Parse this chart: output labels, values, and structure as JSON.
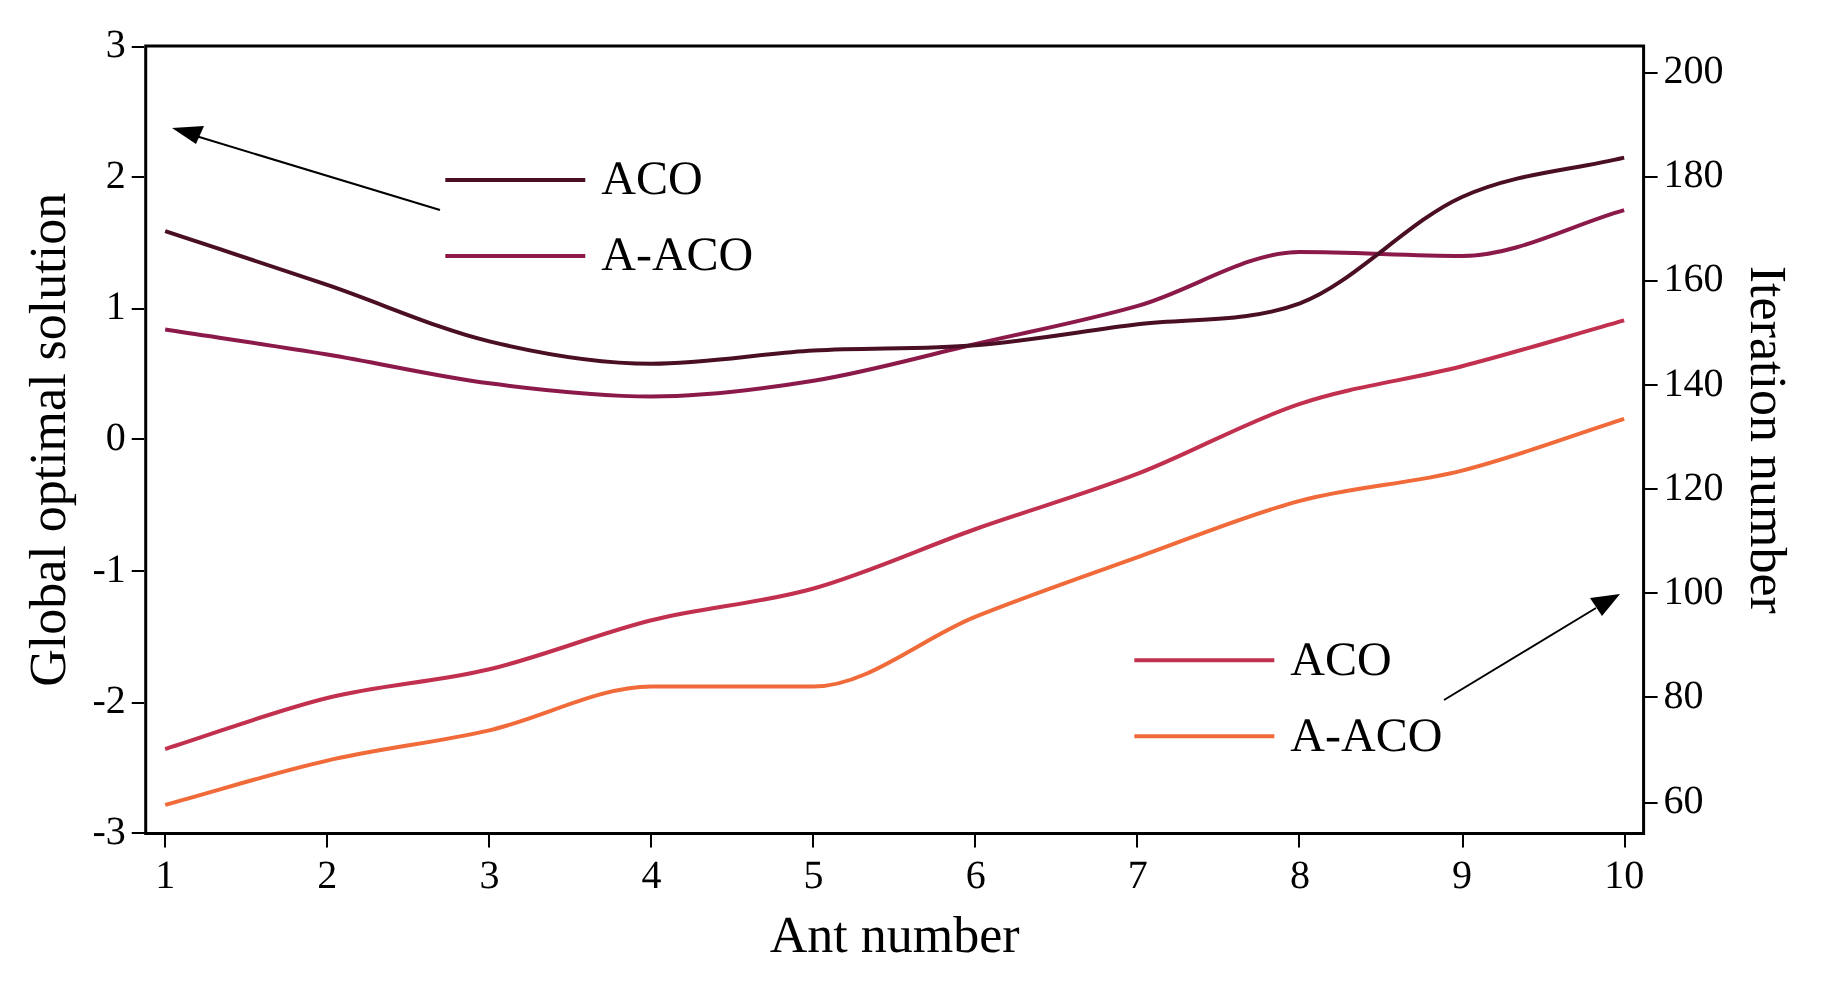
{
  "chart_data": {
    "type": "line",
    "xlabel": "Ant number",
    "ylabel": "Global optimal solution",
    "y2label": "Iteration number",
    "x": [
      1,
      2,
      3,
      4,
      5,
      6,
      7,
      8,
      9,
      10
    ],
    "xlim": [
      0.88,
      10.12
    ],
    "xticks": [
      1,
      2,
      3,
      4,
      5,
      6,
      7,
      8,
      9,
      10
    ],
    "ylim": [
      -3,
      3
    ],
    "yticks": [
      -3,
      -2,
      -1,
      0,
      1,
      2,
      3
    ],
    "y2lim": [
      54,
      205
    ],
    "y2ticks": [
      60,
      80,
      100,
      120,
      140,
      160,
      180,
      200
    ],
    "grid": false,
    "legend": "center",
    "marker": "none",
    "line_style": "solid",
    "series": [
      {
        "name": "ACO",
        "color": "#4a0f24",
        "axis": "y",
        "values": [
          1.59,
          1.18,
          0.75,
          0.58,
          0.68,
          0.72,
          0.88,
          1.04,
          1.85,
          2.15
        ]
      },
      {
        "name": "A-ACO",
        "color": "#8b1a4a",
        "axis": "y",
        "values": [
          0.84,
          0.65,
          0.43,
          0.33,
          0.45,
          0.73,
          1.02,
          1.43,
          1.4,
          1.75
        ]
      },
      {
        "name": "ACO",
        "color": "#c2304f",
        "axis": "y2",
        "values": [
          70.2,
          80,
          85.5,
          94.9,
          101,
          112.4,
          123,
          136.4,
          143.6,
          152.4
        ]
      },
      {
        "name": "A-ACO",
        "color": "#f06a3a",
        "axis": "y2",
        "values": [
          59.5,
          68,
          73.8,
          82.2,
          82.2,
          95.6,
          107,
          117.8,
          123.6,
          133.5
        ]
      }
    ]
  }
}
